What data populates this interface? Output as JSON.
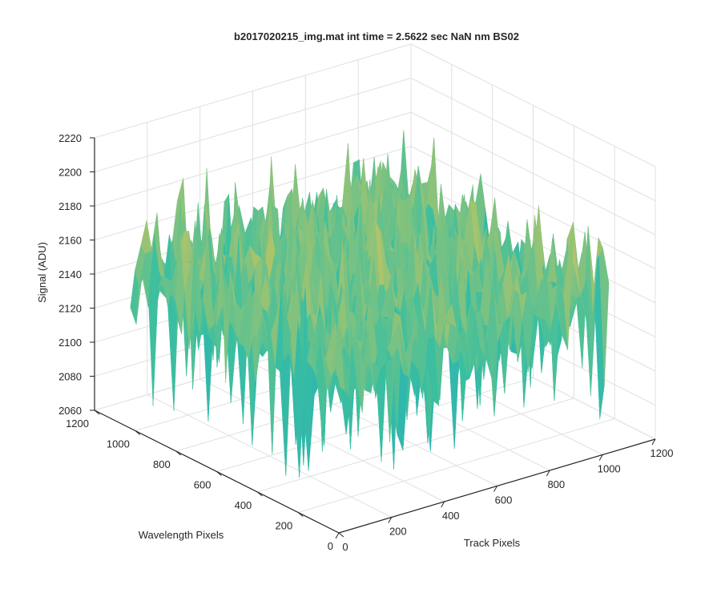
{
  "chart_data": {
    "type": "surface3d",
    "title": "b2017020215_img.mat int time = 2.5622 sec  NaN nm BS02",
    "xlabel": "Track Pixels",
    "ylabel": "Wavelength Pixels",
    "zlabel": "Signal (ADU)",
    "xlim": [
      0,
      1200
    ],
    "ylim": [
      0,
      1200
    ],
    "zlim": [
      2060,
      2220
    ],
    "xticks": [
      "0",
      "200",
      "400",
      "600",
      "800",
      "1000",
      "1200"
    ],
    "yticks": [
      "0",
      "200",
      "400",
      "600",
      "800",
      "1000",
      "1200"
    ],
    "zticks": [
      "2060",
      "2080",
      "2100",
      "2120",
      "2140",
      "2160",
      "2180",
      "2200",
      "2220"
    ],
    "grid": true,
    "colormap": "parula",
    "surface": {
      "x_extent": [
        0,
        1024
      ],
      "y_extent": [
        0,
        1024
      ],
      "mean_signal": 2150,
      "typical_range": [
        2120,
        2175
      ],
      "min_signal": 2075,
      "max_signal": 2200
    },
    "colors": {
      "low": "#0f9fd8",
      "mid": "#3bbfa0",
      "high": "#f2c74a",
      "axis": "#262626",
      "grid": "#e0e0e0"
    }
  }
}
